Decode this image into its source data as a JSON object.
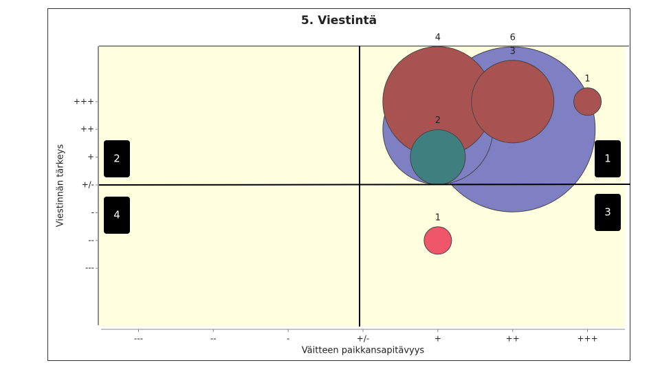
{
  "chart_data": {
    "type": "bubble",
    "title": "5. Viestintä",
    "x_label": "Väitteen paikkansapitävyys",
    "y_label": "Viestinnän tärkeys",
    "xlim": [
      -3.5,
      3.5
    ],
    "ylim": [
      -5,
      5
    ],
    "xticks": [
      {
        "value": -3,
        "label": "---"
      },
      {
        "value": -2,
        "label": "--"
      },
      {
        "value": -1,
        "label": "-"
      },
      {
        "value": 0,
        "label": "+/-"
      },
      {
        "value": 1,
        "label": "+"
      },
      {
        "value": 2,
        "label": "++"
      },
      {
        "value": 3,
        "label": "+++"
      }
    ],
    "yticks": [
      {
        "value": -3,
        "label": "---"
      },
      {
        "value": -2,
        "label": "--"
      },
      {
        "value": -1,
        "label": "-"
      },
      {
        "value": 0,
        "label": "+/-"
      },
      {
        "value": 1,
        "label": "+"
      },
      {
        "value": 2,
        "label": "++"
      },
      {
        "value": 3,
        "label": "+++"
      }
    ],
    "points": [
      {
        "x": 2,
        "y": 2,
        "size": 6,
        "color": "#7f7fc4"
      },
      {
        "x": 1,
        "y": 2,
        "size": 4,
        "color": "#7f7fc4"
      },
      {
        "x": 1,
        "y": 3,
        "size": 4,
        "color": "#a85252"
      },
      {
        "x": 2,
        "y": 3,
        "size": 3,
        "color": "#a85252"
      },
      {
        "x": 3,
        "y": 3,
        "size": 1,
        "color": "#a85252"
      },
      {
        "x": 1,
        "y": 1,
        "size": 2,
        "color": "#3f7f7f"
      },
      {
        "x": 1,
        "y": -2,
        "size": 1,
        "color": "#f0566a"
      }
    ],
    "quadrants": [
      "1",
      "2",
      "3",
      "4"
    ]
  }
}
